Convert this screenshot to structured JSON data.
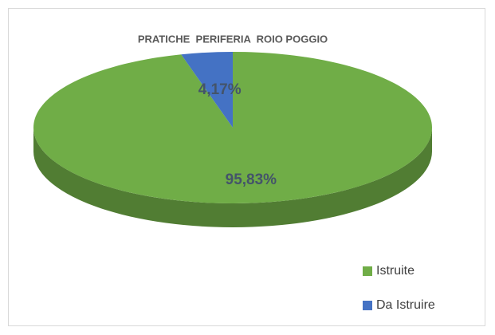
{
  "chart_data": {
    "type": "pie",
    "title": "PRATICHE  PERIFERIA  ROIO POGGIO",
    "series": [
      {
        "name": "Istruite",
        "color": "#70ad47",
        "values": [
          95.83
        ],
        "value_labels": [
          "95,83%"
        ]
      },
      {
        "name": "Da Istruire",
        "color": "#4472c4",
        "values": [
          4.17
        ],
        "value_labels": [
          "4,17%"
        ]
      }
    ]
  }
}
